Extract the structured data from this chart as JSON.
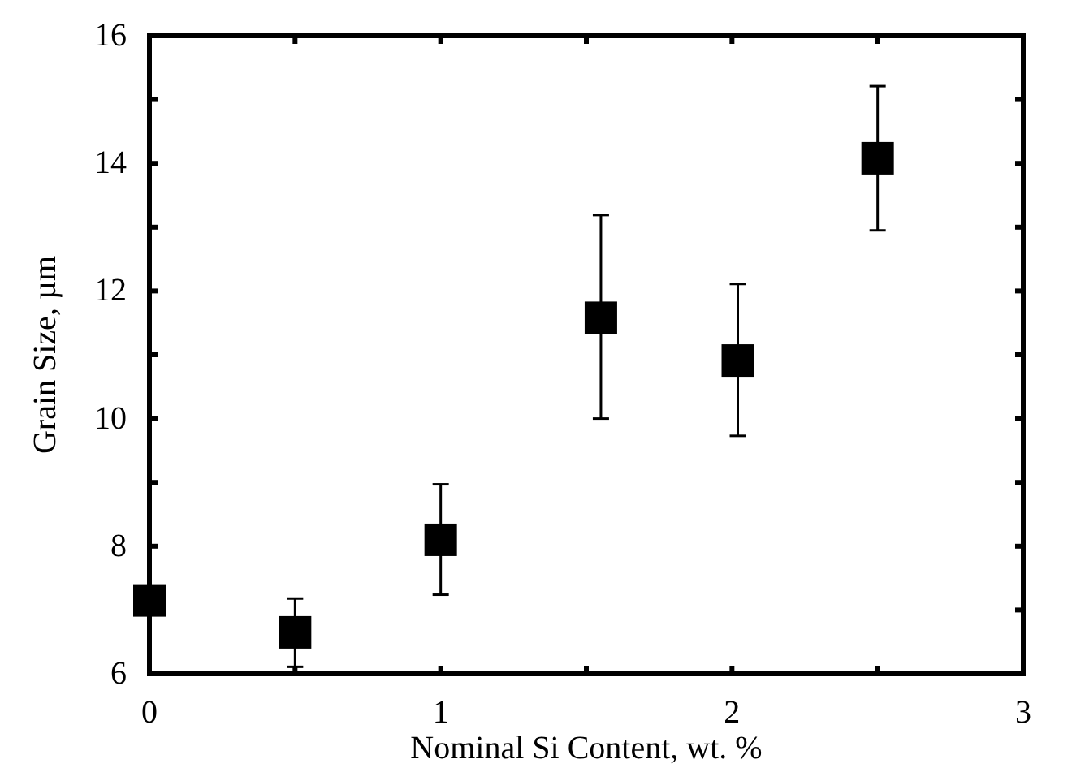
{
  "chart_data": {
    "type": "scatter",
    "xlabel": "Nominal Si Content, wt. %",
    "ylabel": "Grain Size, µm",
    "x": [
      0,
      0.5,
      1,
      1.55,
      2.02,
      2.5
    ],
    "series": [
      {
        "color": "#000000",
        "values": [
          7.15,
          6.65,
          8.1,
          11.58,
          10.91,
          14.08
        ],
        "errors": [
          null,
          [
            6.11,
            7.18
          ],
          [
            7.24,
            8.97
          ],
          [
            10.0,
            13.19
          ],
          [
            9.73,
            12.11
          ],
          [
            12.95,
            15.21
          ]
        ]
      }
    ],
    "xlim": [
      0,
      3
    ],
    "xticks": [
      0,
      {
        "value": 0.5,
        "label": null
      },
      1,
      {
        "value": 1.5,
        "label": null
      },
      2,
      {
        "value": 2.5,
        "label": null
      },
      3
    ],
    "ylim": [
      6,
      16
    ],
    "yticks": [
      6,
      {
        "value": 7,
        "label": null
      },
      8,
      {
        "value": 9,
        "label": null
      },
      10,
      {
        "value": 11,
        "label": null
      },
      12,
      {
        "value": 13,
        "label": null
      },
      14,
      {
        "value": 15,
        "label": null
      },
      16
    ],
    "marker": "square",
    "grid": false
  }
}
